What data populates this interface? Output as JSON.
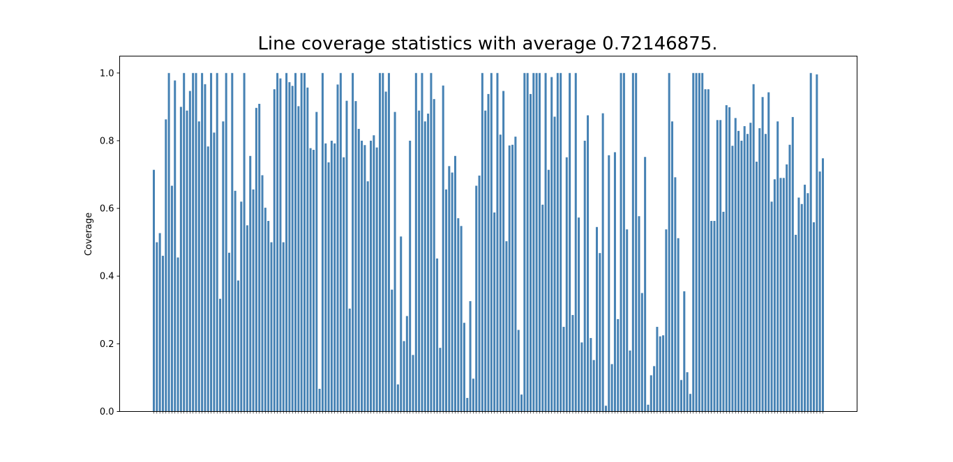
{
  "chart_data": {
    "type": "bar",
    "title": "Line coverage statistics with average 0.72146875.",
    "xlabel": "",
    "ylabel": "Coverage",
    "ylim": [
      0.0,
      1.05
    ],
    "yticks": [
      "0.0",
      "0.2",
      "0.4",
      "0.6",
      "0.8",
      "1.0"
    ],
    "grid": false,
    "bar_color": "#4682b4",
    "values": [
      0.714,
      0.5,
      0.527,
      0.46,
      0.863,
      1.0,
      0.667,
      0.978,
      0.455,
      0.9,
      1.0,
      0.889,
      0.947,
      1.0,
      1.0,
      0.857,
      1.0,
      0.967,
      0.783,
      1.0,
      0.824,
      1.0,
      0.333,
      0.857,
      1.0,
      0.469,
      1.0,
      0.652,
      0.387,
      0.62,
      1.0,
      0.55,
      0.755,
      0.656,
      0.897,
      0.909,
      0.698,
      0.602,
      0.563,
      0.5,
      0.952,
      1.0,
      0.984,
      0.5,
      1.0,
      0.973,
      0.962,
      1.0,
      0.902,
      1.0,
      1.0,
      0.957,
      0.778,
      0.773,
      0.885,
      0.067,
      1.0,
      0.792,
      0.736,
      0.8,
      0.792,
      0.966,
      1.0,
      0.751,
      0.918,
      0.304,
      1.0,
      0.917,
      0.835,
      0.8,
      0.787,
      0.68,
      0.8,
      0.816,
      0.78,
      1.0,
      1.0,
      0.945,
      1.0,
      0.36,
      0.885,
      0.08,
      0.517,
      0.208,
      0.282,
      0.8,
      0.167,
      1.0,
      0.889,
      1.0,
      0.857,
      0.88,
      1.0,
      0.923,
      0.452,
      0.188,
      0.963,
      0.656,
      0.725,
      0.706,
      0.755,
      0.571,
      0.548,
      0.262,
      0.04,
      0.326,
      0.097,
      0.667,
      0.697,
      1.0,
      0.889,
      0.938,
      1.0,
      0.588,
      1.0,
      0.818,
      0.947,
      0.503,
      0.786,
      0.788,
      0.812,
      0.241,
      0.05,
      1.0,
      1.0,
      0.938,
      1.0,
      1.0,
      1.0,
      0.611,
      1.0,
      0.714,
      0.988,
      0.871,
      1.0,
      1.0,
      0.25,
      0.751,
      1.0,
      0.285,
      1.0,
      0.573,
      0.204,
      0.8,
      0.875,
      0.217,
      0.152,
      0.545,
      0.468,
      0.881,
      0.017,
      0.757,
      0.14,
      0.766,
      0.273,
      1.0,
      1.0,
      0.538,
      0.18,
      1.0,
      1.0,
      0.577,
      0.35,
      0.752,
      0.02,
      0.107,
      0.134,
      0.25,
      0.222,
      0.225,
      0.538,
      1.0,
      0.857,
      0.692,
      0.512,
      0.093,
      0.355,
      0.116,
      0.052,
      1.0,
      1.0,
      1.0,
      1.0,
      0.952,
      0.952,
      0.563,
      0.563,
      0.861,
      0.861,
      0.59,
      0.905,
      0.899,
      0.785,
      0.867,
      0.829,
      0.8,
      0.843,
      0.82,
      0.853,
      0.967,
      0.738,
      0.837,
      0.929,
      0.82,
      0.943,
      0.62,
      0.686,
      0.857,
      0.69,
      0.69,
      0.73,
      0.788,
      0.87,
      0.522,
      0.632,
      0.613,
      0.67,
      0.645,
      1.0,
      0.559,
      0.996,
      0.709,
      0.748
    ]
  }
}
